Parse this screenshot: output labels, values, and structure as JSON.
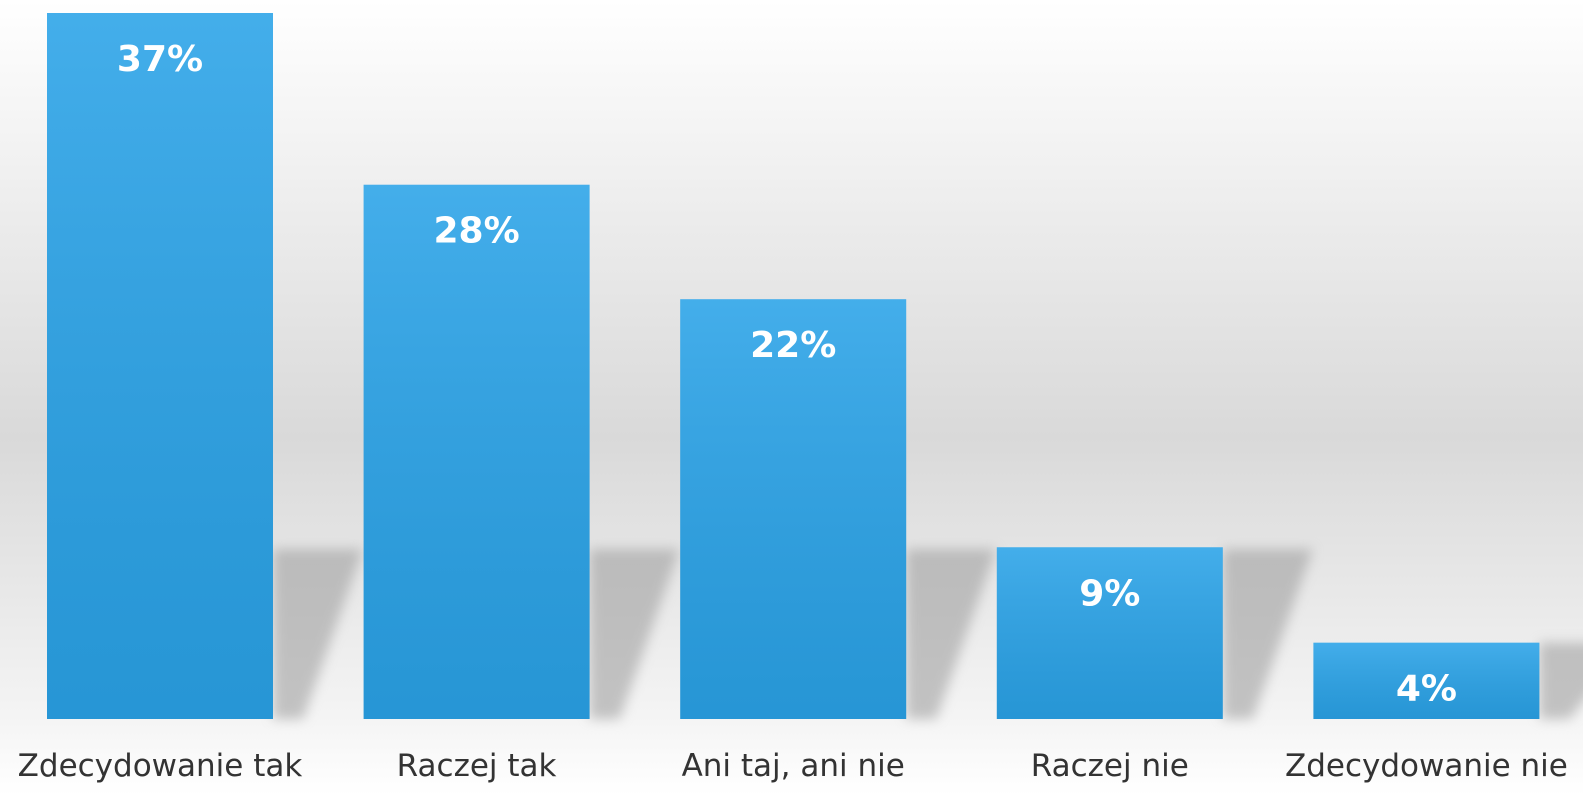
{
  "chart_data": {
    "type": "bar",
    "categories": [
      "Zdecydowanie tak",
      "Raczej tak",
      "Ani taj, ani nie",
      "Raczej nie",
      "Zdecydowanie nie"
    ],
    "values": [
      37,
      28,
      22,
      9,
      4
    ],
    "value_labels": [
      "37%",
      "28%",
      "22%",
      "9%",
      "4%"
    ],
    "color": "#2aa3e8"
  }
}
